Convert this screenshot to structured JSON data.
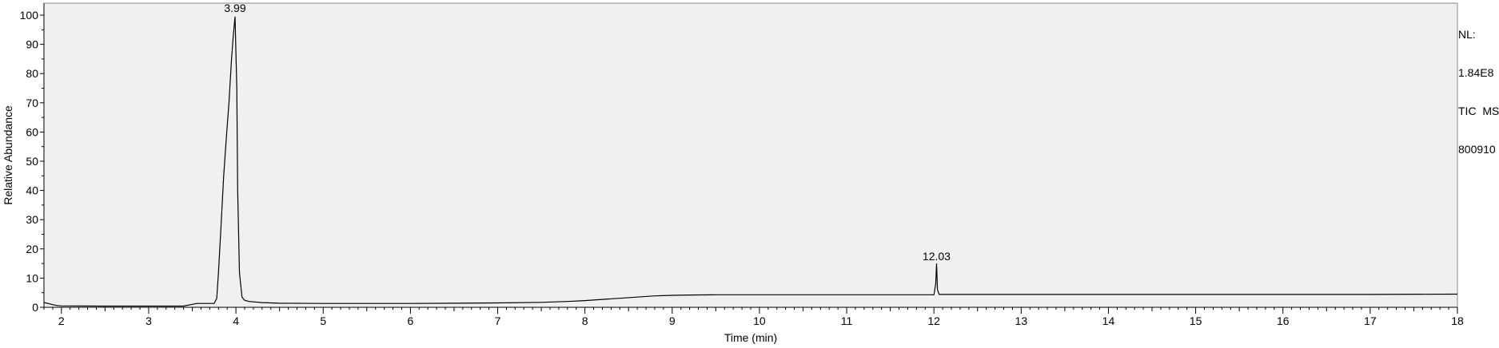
{
  "info": {
    "line1": "NL:",
    "line2": "1.84E8",
    "line3": "TIC  MS",
    "line4": "800910"
  },
  "chart_data": {
    "type": "line",
    "title": "",
    "xlabel": "Time (min)",
    "ylabel": "Relative Abundance",
    "xlim": [
      1.8,
      18
    ],
    "ylim": [
      0,
      100
    ],
    "x_ticks": [
      2,
      3,
      4,
      5,
      6,
      7,
      8,
      9,
      10,
      11,
      12,
      13,
      14,
      15,
      16,
      17,
      18
    ],
    "y_ticks": [
      0,
      10,
      20,
      30,
      40,
      50,
      60,
      70,
      80,
      90,
      100
    ],
    "grid": false,
    "background": "#f0f0f0",
    "line_color": "#000000",
    "series": [
      {
        "x": [
          1.8,
          1.85,
          1.9,
          1.95,
          2.0,
          2.5,
          3.0,
          3.4,
          3.5,
          3.55,
          3.75,
          3.78,
          3.8,
          3.83,
          3.86,
          3.89,
          3.92,
          3.95,
          3.97,
          3.99,
          4.01,
          4.02,
          4.04,
          4.07,
          4.1,
          4.15,
          4.3,
          4.5,
          5.0,
          6.0,
          6.5,
          7.0,
          7.5,
          7.8,
          8.0,
          8.2,
          8.4,
          8.6,
          8.8,
          9.0,
          9.2,
          9.5,
          10.0,
          11.0,
          12.0,
          12.02,
          12.03,
          12.04,
          12.06,
          12.5,
          13.0,
          14.0,
          15.0,
          16.0,
          17.0,
          18.0
        ],
        "y": [
          1.6,
          1.3,
          0.9,
          0.6,
          0.5,
          0.4,
          0.4,
          0.4,
          1.0,
          1.3,
          1.3,
          3.0,
          12.0,
          28.0,
          45.0,
          58.0,
          70.0,
          85.0,
          93.0,
          99.5,
          75.0,
          40.0,
          12.0,
          3.5,
          2.4,
          2.0,
          1.6,
          1.4,
          1.3,
          1.3,
          1.4,
          1.5,
          1.7,
          2.0,
          2.3,
          2.7,
          3.1,
          3.5,
          3.9,
          4.1,
          4.2,
          4.3,
          4.3,
          4.3,
          4.3,
          8.0,
          15.0,
          6.0,
          4.4,
          4.4,
          4.4,
          4.4,
          4.4,
          4.4,
          4.4,
          4.5
        ]
      }
    ],
    "annotations": [
      {
        "x": 3.99,
        "y": 100,
        "text": "3.99"
      },
      {
        "x": 12.03,
        "y": 15,
        "text": "12.03"
      }
    ]
  }
}
